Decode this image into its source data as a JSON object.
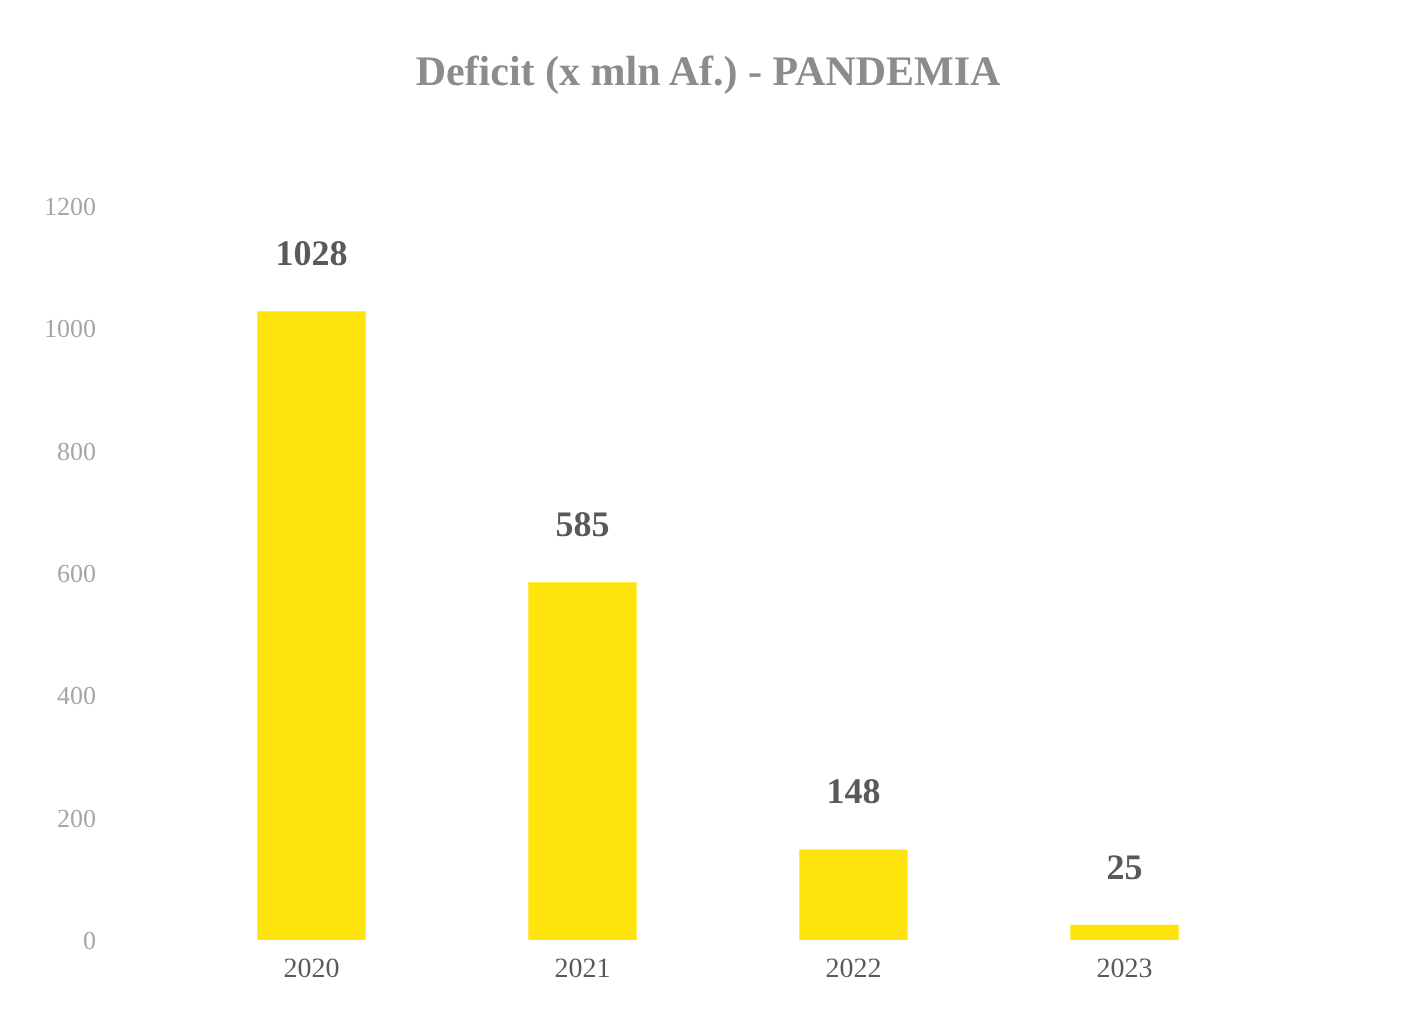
{
  "chart_data": {
    "type": "bar",
    "title": "Deficit (x mln Af.) - PANDEMIA",
    "categories": [
      "2020",
      "2021",
      "2022",
      "2023"
    ],
    "values": [
      1028,
      585,
      148,
      25
    ],
    "color": "#ffe30c",
    "ylim": [
      0,
      1200
    ],
    "yticks": [
      0,
      200,
      400,
      600,
      800,
      1000,
      1200
    ],
    "grid": false,
    "data_labels": true
  }
}
